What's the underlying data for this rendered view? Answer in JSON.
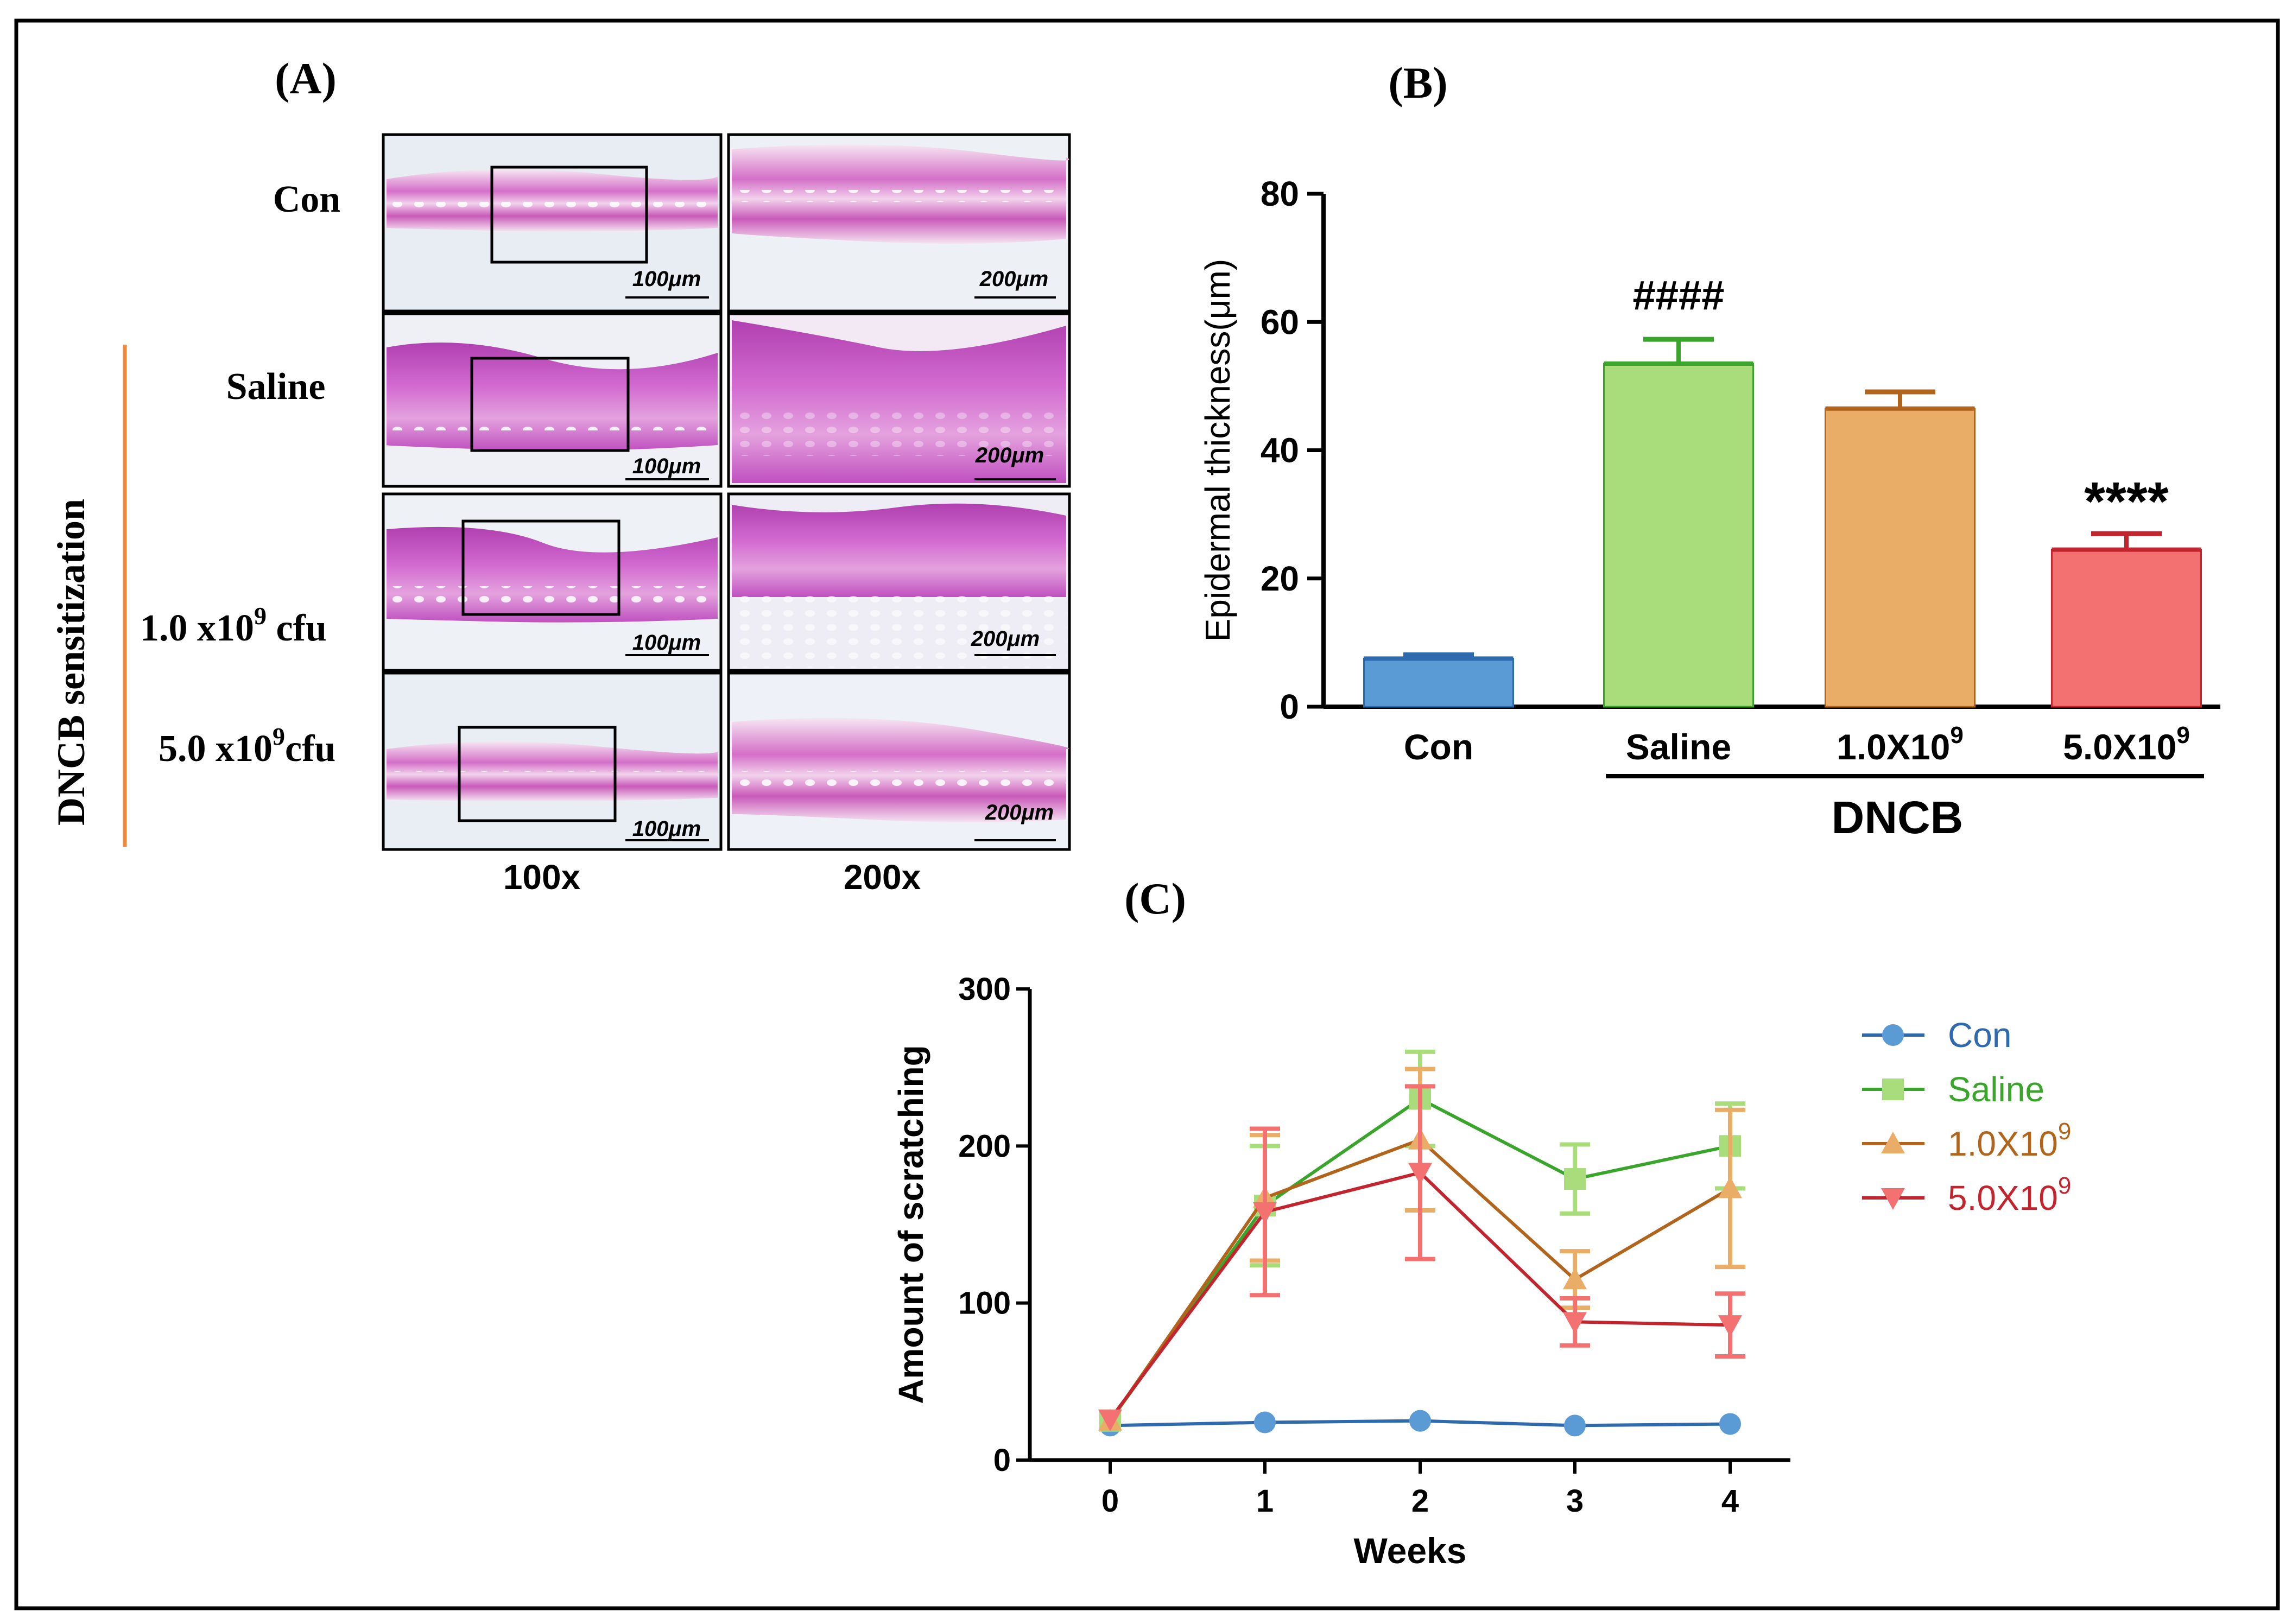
{
  "panels": {
    "a_label": "(A)",
    "b_label": "(B)",
    "c_label": "(C)"
  },
  "histology": {
    "side_label": "DNCB sensitization",
    "rows": [
      {
        "label": "Con",
        "sup": "",
        "suffix": ""
      },
      {
        "label": "Saline",
        "sup": "",
        "suffix": ""
      },
      {
        "label": "1.0 x10",
        "sup": "9",
        "suffix": " cfu"
      },
      {
        "label": "5.0 x10",
        "sup": "9",
        "suffix": "cfu"
      }
    ],
    "scale_100": "100μm",
    "scale_200": "200μm",
    "col_labels": [
      "100x",
      "200x"
    ]
  },
  "chart_data": [
    {
      "type": "bar",
      "panel": "B",
      "ylabel": "Epidermal thickness(μm)",
      "ylim": [
        0,
        80
      ],
      "yticks": [
        0,
        20,
        40,
        60,
        80
      ],
      "categories": [
        "Con",
        "Saline",
        "1.0X10",
        "5.0X10"
      ],
      "category_sups": [
        "",
        "",
        "9",
        "9"
      ],
      "values": [
        7.5,
        53.5,
        46.5,
        24.5
      ],
      "errors": [
        0.6,
        3.8,
        2.6,
        2.5
      ],
      "annotations": [
        "",
        "####",
        "",
        "****"
      ],
      "group_label": "DNCB",
      "colors": {
        "fill": [
          "#5b9bd5",
          "#a9dc7a",
          "#e9ad68",
          "#f47172"
        ],
        "stroke": [
          "#2e6aad",
          "#3aa52b",
          "#b0641c",
          "#c2252e"
        ]
      }
    },
    {
      "type": "line",
      "panel": "C",
      "xlabel": "Weeks",
      "ylabel": "Amount of scratching",
      "x": [
        0,
        1,
        2,
        3,
        4
      ],
      "ylim": [
        0,
        300
      ],
      "yticks": [
        0,
        100,
        200,
        300
      ],
      "legend_position": "right",
      "series": [
        {
          "name": "Con",
          "sup": "",
          "marker": "circle",
          "color": "#2e6aad",
          "marker_color": "#5b9bd5",
          "values": [
            22,
            24,
            25,
            22,
            23
          ],
          "errors": [
            0,
            0,
            0,
            0,
            0
          ]
        },
        {
          "name": "Saline",
          "sup": "",
          "marker": "square",
          "color": "#3aa52b",
          "marker_color": "#a9dc7a",
          "values": [
            25,
            162,
            230,
            179,
            200
          ],
          "errors": [
            0,
            38,
            30,
            22,
            27
          ]
        },
        {
          "name": "1.0X10",
          "sup": "9",
          "marker": "triangle-up",
          "color": "#b0641c",
          "marker_color": "#e9ad68",
          "values": [
            25,
            167,
            204,
            115,
            173
          ],
          "errors": [
            0,
            40,
            45,
            18,
            50
          ]
        },
        {
          "name": "5.0X10",
          "sup": "9",
          "marker": "triangle-down",
          "color": "#c2252e",
          "marker_color": "#f47172",
          "values": [
            26,
            158,
            183,
            88,
            86
          ],
          "errors": [
            0,
            53,
            55,
            15,
            20
          ]
        }
      ]
    }
  ]
}
